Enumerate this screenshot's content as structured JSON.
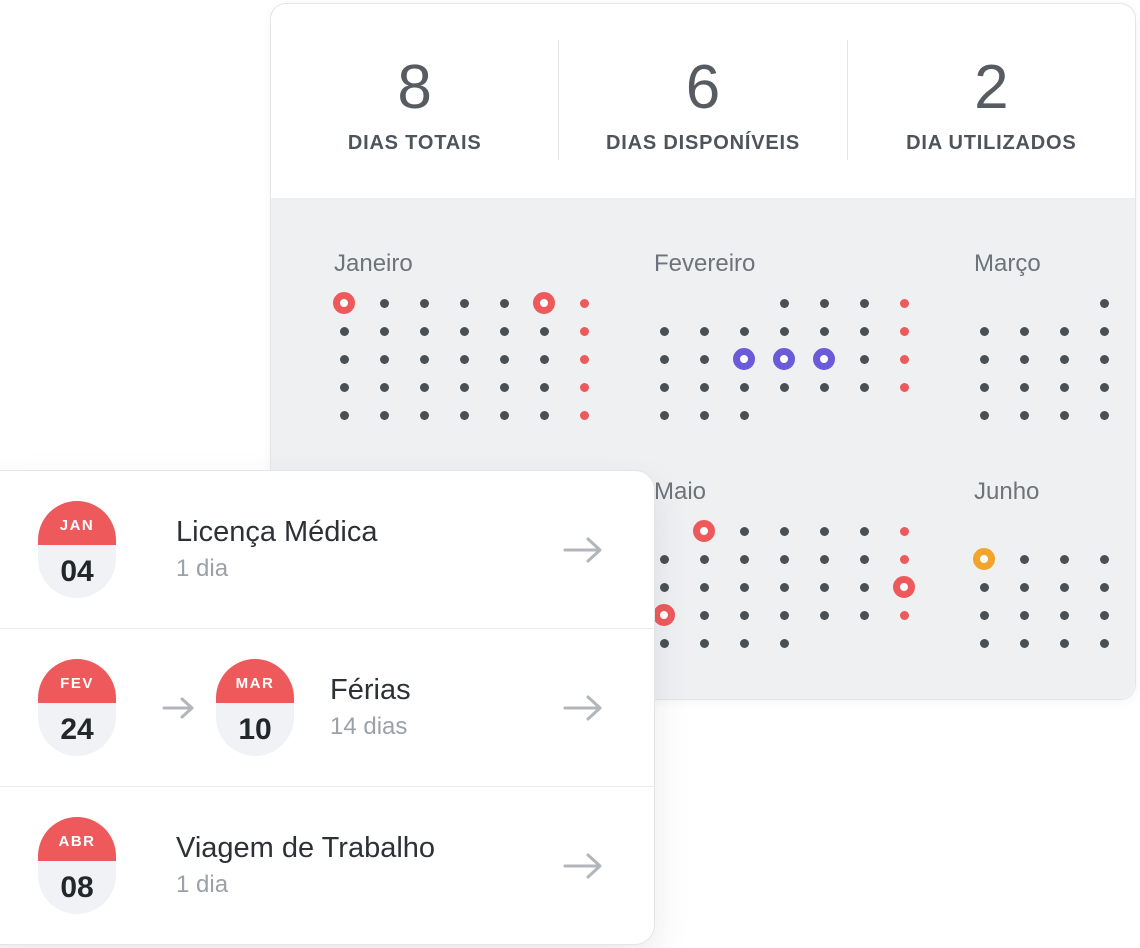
{
  "stats": {
    "items": [
      {
        "value": "8",
        "label": "DIAS TOTAIS"
      },
      {
        "value": "6",
        "label": "DIAS DISPONÍVEIS"
      },
      {
        "value": "2",
        "label": "DIA UTILIZADOS"
      }
    ]
  },
  "calendar": {
    "months": [
      {
        "name": "Janeiro",
        "col": 0,
        "row": 0,
        "grid": [
          [
            "R",
            "d",
            "d",
            "d",
            "d",
            "R",
            "r"
          ],
          [
            "d",
            "d",
            "d",
            "d",
            "d",
            "d",
            "r"
          ],
          [
            "d",
            "d",
            "d",
            "d",
            "d",
            "d",
            "r"
          ],
          [
            "d",
            "d",
            "d",
            "d",
            "d",
            "d",
            "r"
          ],
          [
            "d",
            "d",
            "d",
            "d",
            "d",
            "d",
            "r"
          ]
        ]
      },
      {
        "name": "Fevereiro",
        "col": 1,
        "row": 0,
        "grid": [
          [
            ".",
            ".",
            ".",
            "d",
            "d",
            "d",
            "r"
          ],
          [
            "d",
            "d",
            "d",
            "d",
            "d",
            "d",
            "r"
          ],
          [
            "d",
            "d",
            "P",
            "P",
            "P",
            "d",
            "r"
          ],
          [
            "d",
            "d",
            "d",
            "d",
            "d",
            "d",
            "r"
          ],
          [
            "d",
            "d",
            "d",
            ".",
            ".",
            ".",
            "."
          ]
        ]
      },
      {
        "name": "Março",
        "col": 2,
        "row": 0,
        "grid": [
          [
            ".",
            ".",
            ".",
            "d"
          ],
          [
            "d",
            "d",
            "d",
            "d"
          ],
          [
            "d",
            "d",
            "d",
            "d"
          ],
          [
            "d",
            "d",
            "d",
            "d"
          ],
          [
            "d",
            "d",
            "d",
            "d"
          ]
        ]
      },
      {
        "name": "Maio",
        "col": 1,
        "row": 1,
        "grid": [
          [
            ".",
            "R",
            "d",
            "d",
            "d",
            "d",
            "r"
          ],
          [
            "d",
            "d",
            "d",
            "d",
            "d",
            "d",
            "r"
          ],
          [
            "d",
            "d",
            "d",
            "d",
            "d",
            "d",
            "R"
          ],
          [
            "R",
            "d",
            "d",
            "d",
            "d",
            "d",
            "r"
          ],
          [
            "d",
            "d",
            "d",
            "d",
            ".",
            ".",
            "."
          ]
        ]
      },
      {
        "name": "Junho",
        "col": 2,
        "row": 1,
        "grid": [
          [
            ".",
            ".",
            ".",
            "."
          ],
          [
            "O",
            "d",
            "d",
            "d"
          ],
          [
            "d",
            "d",
            "d",
            "d"
          ],
          [
            "d",
            "d",
            "d",
            "d"
          ],
          [
            "d",
            "d",
            "d",
            "d"
          ]
        ]
      }
    ]
  },
  "events": [
    {
      "badges": [
        {
          "month": "JAN",
          "day": "04"
        }
      ],
      "title": "Licença Médica",
      "duration": "1 dia"
    },
    {
      "badges": [
        {
          "month": "FEV",
          "day": "24"
        },
        {
          "month": "MAR",
          "day": "10"
        }
      ],
      "title": "Férias",
      "duration": "14 dias"
    },
    {
      "badges": [
        {
          "month": "ABR",
          "day": "08"
        }
      ],
      "title": "Viagem de Trabalho",
      "duration": "1 dia"
    }
  ],
  "colors": {
    "red": "#ee5a5c",
    "purple": "#6a5cd8",
    "orange": "#f3a42a",
    "dot": "#4a4f54",
    "panel_bg": "#eef0f2",
    "card_border": "#e3e5e8",
    "month_title": "#6d737a",
    "text_dark": "#2c3136",
    "text_gray": "#9ba1a8",
    "arrow": "#b0b6bc",
    "badge_day_bg": "#f0f2f5",
    "divider": "#eaecef",
    "stat_value": "#565c62",
    "stat_label": "#4d545b"
  }
}
